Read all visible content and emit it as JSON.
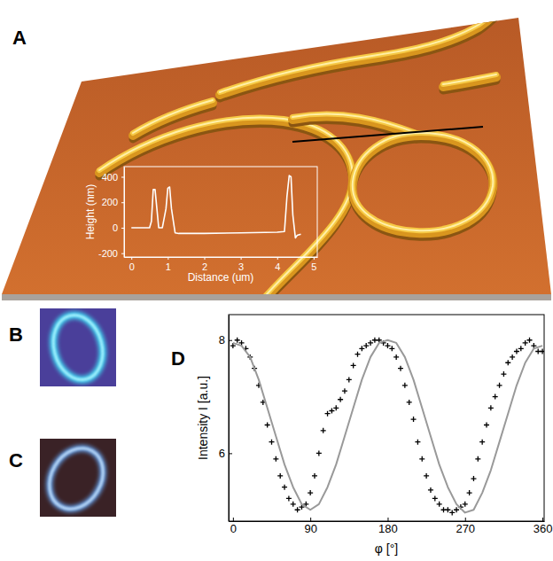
{
  "panel_labels": [
    "A",
    "B",
    "C",
    "D"
  ],
  "chart_data": [
    {
      "type": "line",
      "xlabel": "Distance (um)",
      "ylabel": "Height (nm)",
      "xlim": [
        -0.2,
        5.1
      ],
      "ylim": [
        -230,
        480
      ],
      "xticks": [
        0,
        1,
        2,
        3,
        4,
        5
      ],
      "yticks": [
        -200,
        0,
        200,
        400
      ],
      "color": "#ffffff",
      "x": [
        0,
        0.5,
        0.55,
        0.6,
        0.65,
        0.7,
        0.75,
        0.85,
        0.95,
        1.0,
        1.05,
        1.1,
        1.2,
        1.3,
        2,
        3,
        4,
        4.2,
        4.27,
        4.33,
        4.38,
        4.43,
        4.5,
        4.55,
        4.65
      ],
      "values": [
        0,
        0,
        50,
        300,
        300,
        150,
        0,
        0,
        150,
        310,
        320,
        150,
        -40,
        -45,
        -45,
        -40,
        -35,
        -30,
        250,
        410,
        400,
        100,
        -80,
        -60,
        -50
      ]
    },
    {
      "type": "scatter",
      "xlabel": "φ [°]",
      "ylabel": "Intensity I [a.u.]",
      "xlim": [
        -5,
        362
      ],
      "ylim": [
        4.8,
        8.45
      ],
      "xticks": [
        0,
        90,
        180,
        270,
        360
      ],
      "yticks": [
        6,
        8
      ],
      "series": [
        {
          "type": "scatter",
          "marker": "cross",
          "color": "#000000",
          "x": [
            0,
            5,
            10,
            15,
            20,
            25,
            30,
            35,
            40,
            45,
            50,
            55,
            60,
            65,
            70,
            75,
            80,
            85,
            90,
            95,
            100,
            105,
            110,
            115,
            120,
            125,
            130,
            135,
            140,
            145,
            150,
            155,
            160,
            165,
            170,
            175,
            180,
            185,
            190,
            195,
            200,
            205,
            210,
            215,
            220,
            225,
            230,
            235,
            240,
            245,
            250,
            255,
            260,
            265,
            270,
            275,
            280,
            285,
            290,
            295,
            300,
            305,
            310,
            315,
            320,
            325,
            330,
            335,
            340,
            345,
            350,
            355,
            360
          ],
          "values": [
            7.9,
            8.0,
            7.95,
            7.85,
            7.7,
            7.5,
            7.2,
            6.9,
            6.5,
            6.2,
            5.9,
            5.6,
            5.4,
            5.2,
            5.1,
            5.0,
            5.05,
            5.1,
            5.3,
            5.6,
            6.0,
            6.4,
            6.7,
            6.75,
            6.8,
            6.95,
            7.1,
            7.3,
            7.55,
            7.75,
            7.85,
            7.9,
            7.95,
            8.0,
            8.0,
            7.95,
            7.9,
            7.85,
            7.7,
            7.5,
            7.2,
            6.9,
            6.6,
            6.2,
            5.9,
            5.6,
            5.35,
            5.2,
            5.1,
            5.0,
            5.0,
            4.95,
            5.0,
            5.05,
            5.1,
            5.3,
            5.55,
            5.9,
            6.2,
            6.5,
            6.8,
            7.0,
            7.2,
            7.4,
            7.6,
            7.7,
            7.8,
            7.85,
            7.95,
            8.0,
            7.9,
            7.8,
            7.8
          ]
        },
        {
          "type": "line",
          "line_style": "solid",
          "color": "#999999",
          "x": [
            0,
            10,
            20,
            30,
            40,
            50,
            60,
            70,
            80,
            90,
            100,
            110,
            120,
            130,
            140,
            150,
            160,
            170,
            180,
            190,
            200,
            210,
            220,
            230,
            240,
            250,
            260,
            270,
            280,
            290,
            300,
            310,
            320,
            330,
            340,
            350,
            360
          ],
          "values": [
            7.95,
            7.9,
            7.7,
            7.3,
            6.8,
            6.3,
            5.8,
            5.4,
            5.1,
            5.0,
            5.1,
            5.4,
            5.8,
            6.3,
            6.8,
            7.3,
            7.7,
            7.95,
            8.0,
            7.95,
            7.7,
            7.3,
            6.8,
            6.3,
            5.8,
            5.4,
            5.1,
            4.95,
            5.0,
            5.3,
            5.7,
            6.2,
            6.7,
            7.2,
            7.6,
            7.85,
            7.9
          ]
        }
      ]
    }
  ]
}
